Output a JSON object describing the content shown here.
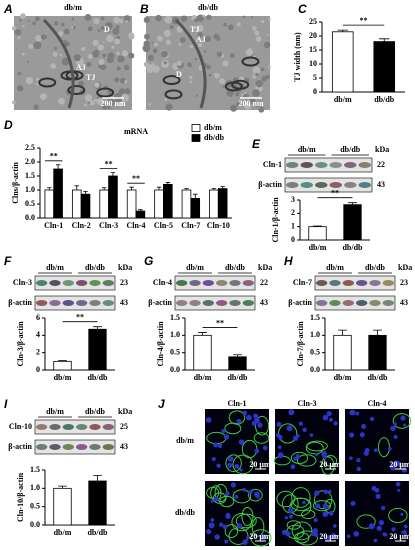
{
  "panels": [
    {
      "label": "A",
      "title": "db/m",
      "marks": [
        "D",
        "AJ",
        "TJ"
      ],
      "scale": "200 nm"
    },
    {
      "label": "B",
      "title": "db/db",
      "marks": [
        "TJ",
        "AJ",
        "D"
      ],
      "scale": "200 nm"
    },
    {
      "label": "C"
    },
    {
      "label": "D"
    },
    {
      "label": "E",
      "groups": [
        "db/m",
        "db/db"
      ],
      "unit": "kDa",
      "rows": [
        {
          "name": "Cln-1",
          "kDa": 22
        },
        {
          "name": "β-actin",
          "kDa": 43
        }
      ]
    },
    {
      "label": "F",
      "groups": [
        "db/m",
        "db/db"
      ],
      "unit": "kDa",
      "rows": [
        {
          "name": "Cln-3",
          "kDa": 23
        },
        {
          "name": "β-actin",
          "kDa": 43
        }
      ]
    },
    {
      "label": "G",
      "groups": [
        "db/m",
        "db/db"
      ],
      "unit": "kDa",
      "rows": [
        {
          "name": "Cln-4",
          "kDa": 22
        },
        {
          "name": "β-actin",
          "kDa": 43
        }
      ]
    },
    {
      "label": "H",
      "groups": [
        "db/m",
        "db/db"
      ],
      "unit": "kDa",
      "rows": [
        {
          "name": "Cln-7",
          "kDa": 23
        },
        {
          "name": "β-actin",
          "kDa": 43
        }
      ]
    },
    {
      "label": "I",
      "groups": [
        "db/m",
        "db/db"
      ],
      "unit": "kDa",
      "rows": [
        {
          "name": "Cln-10",
          "kDa": 25
        },
        {
          "name": "β-actin",
          "kDa": 43
        }
      ]
    },
    {
      "label": "J",
      "columns": [
        "Cln-1",
        "Cln-3",
        "Cln-4"
      ],
      "rows": [
        "db/m",
        "db/db"
      ],
      "scale": "20 μm"
    }
  ],
  "chart_data": [
    {
      "type": "bar",
      "ylabel": "TJ width (nm)",
      "categories": [
        "db/m",
        "db/db"
      ],
      "values": [
        21.5,
        18
      ],
      "errors": [
        0.6,
        1.0
      ],
      "colors": [
        "#ffffff",
        "#000000"
      ],
      "ylim": [
        0,
        25
      ],
      "yticks": [
        0,
        5,
        10,
        15,
        20,
        25
      ],
      "annotations": [
        {
          "text": "**"
        }
      ]
    },
    {
      "type": "bar",
      "title": "mRNA",
      "ylabel": "Clns/β-actin",
      "categories": [
        "Cln-1",
        "Cln-2",
        "Cln-3",
        "Cln-4",
        "Cln-5",
        "Cln-7",
        "Cln-10"
      ],
      "series": [
        {
          "name": "db/m",
          "color": "#ffffff",
          "values": [
            1.0,
            1.0,
            1.0,
            1.0,
            1.0,
            1.0,
            1.0
          ],
          "errors": [
            0.08,
            0.15,
            0.08,
            0.1,
            0.1,
            0.05,
            0.05
          ]
        },
        {
          "name": "db/db",
          "color": "#000000",
          "values": [
            1.75,
            0.85,
            1.5,
            0.25,
            1.2,
            0.7,
            1.05
          ],
          "errors": [
            0.15,
            0.1,
            0.12,
            0.05,
            0.07,
            0.15,
            0.07
          ]
        }
      ],
      "ylim": [
        0,
        2.5
      ],
      "yticks": [
        {
          "value": 0,
          "label": "0.0"
        },
        {
          "value": 0.5,
          "label": "0.5"
        },
        {
          "value": 1,
          "label": "1.0"
        },
        {
          "value": 1.5,
          "label": "1.5"
        },
        {
          "value": 2,
          "label": "2.0"
        },
        {
          "value": 2.5,
          "label": "2.5"
        }
      ],
      "annotations": [
        {
          "text": "**",
          "category": "Cln-1"
        },
        {
          "text": "**",
          "category": "Cln-3"
        },
        {
          "text": "**",
          "category": "Cln-4"
        }
      ]
    },
    {
      "type": "bar",
      "ylabel": "Cln-1/β-actin",
      "categories": [
        "db/m",
        "db/db"
      ],
      "values": [
        1.0,
        2.65
      ],
      "errors": [
        0.05,
        0.15
      ],
      "colors": [
        "#ffffff",
        "#000000"
      ],
      "ylim": [
        0,
        3
      ],
      "yticks": [
        0,
        1,
        2,
        3
      ],
      "annotations": [
        {
          "text": "**"
        }
      ]
    },
    {
      "type": "bar",
      "ylabel": "Cln-3/β-actin",
      "categories": [
        "db/m",
        "db/db"
      ],
      "values": [
        1.0,
        4.7
      ],
      "errors": [
        0.1,
        0.3
      ],
      "colors": [
        "#ffffff",
        "#000000"
      ],
      "ylim": [
        0,
        6
      ],
      "yticks": [
        0,
        2,
        4,
        6
      ],
      "annotations": [
        {
          "text": "**"
        }
      ]
    },
    {
      "type": "bar",
      "ylabel": "Cln-4/β-actin",
      "categories": [
        "db/m",
        "db/db"
      ],
      "values": [
        1.0,
        0.38
      ],
      "errors": [
        0.08,
        0.06
      ],
      "colors": [
        "#ffffff",
        "#000000"
      ],
      "ylim": [
        0,
        1.5
      ],
      "yticks": [
        {
          "value": 0,
          "label": "0.0"
        },
        {
          "value": 0.5,
          "label": "0.5"
        },
        {
          "value": 1,
          "label": "1.0"
        },
        {
          "value": 1.5,
          "label": "1.5"
        }
      ],
      "annotations": [
        {
          "text": "**"
        }
      ]
    },
    {
      "type": "bar",
      "ylabel": "Cln-7/β-actin",
      "categories": [
        "db/m",
        "db/db"
      ],
      "values": [
        1.0,
        1.0
      ],
      "errors": [
        0.15,
        0.15
      ],
      "colors": [
        "#ffffff",
        "#000000"
      ],
      "ylim": [
        0,
        1.5
      ],
      "yticks": [
        {
          "value": 0,
          "label": "0.0"
        },
        {
          "value": 0.5,
          "label": "0.5"
        },
        {
          "value": 1,
          "label": "1.0"
        },
        {
          "value": 1.5,
          "label": "1.5"
        }
      ]
    },
    {
      "type": "bar",
      "ylabel": "Cln-10/β-actin",
      "categories": [
        "db/m",
        "db/db"
      ],
      "values": [
        1.0,
        1.2
      ],
      "errors": [
        0.06,
        0.15
      ],
      "colors": [
        "#ffffff",
        "#000000"
      ],
      "ylim": [
        0,
        1.5
      ],
      "yticks": [
        {
          "value": 0,
          "label": "0.0"
        },
        {
          "value": 0.5,
          "label": "0.5"
        },
        {
          "value": 1,
          "label": "1.0"
        },
        {
          "value": 1.5,
          "label": "1.5"
        }
      ]
    }
  ]
}
